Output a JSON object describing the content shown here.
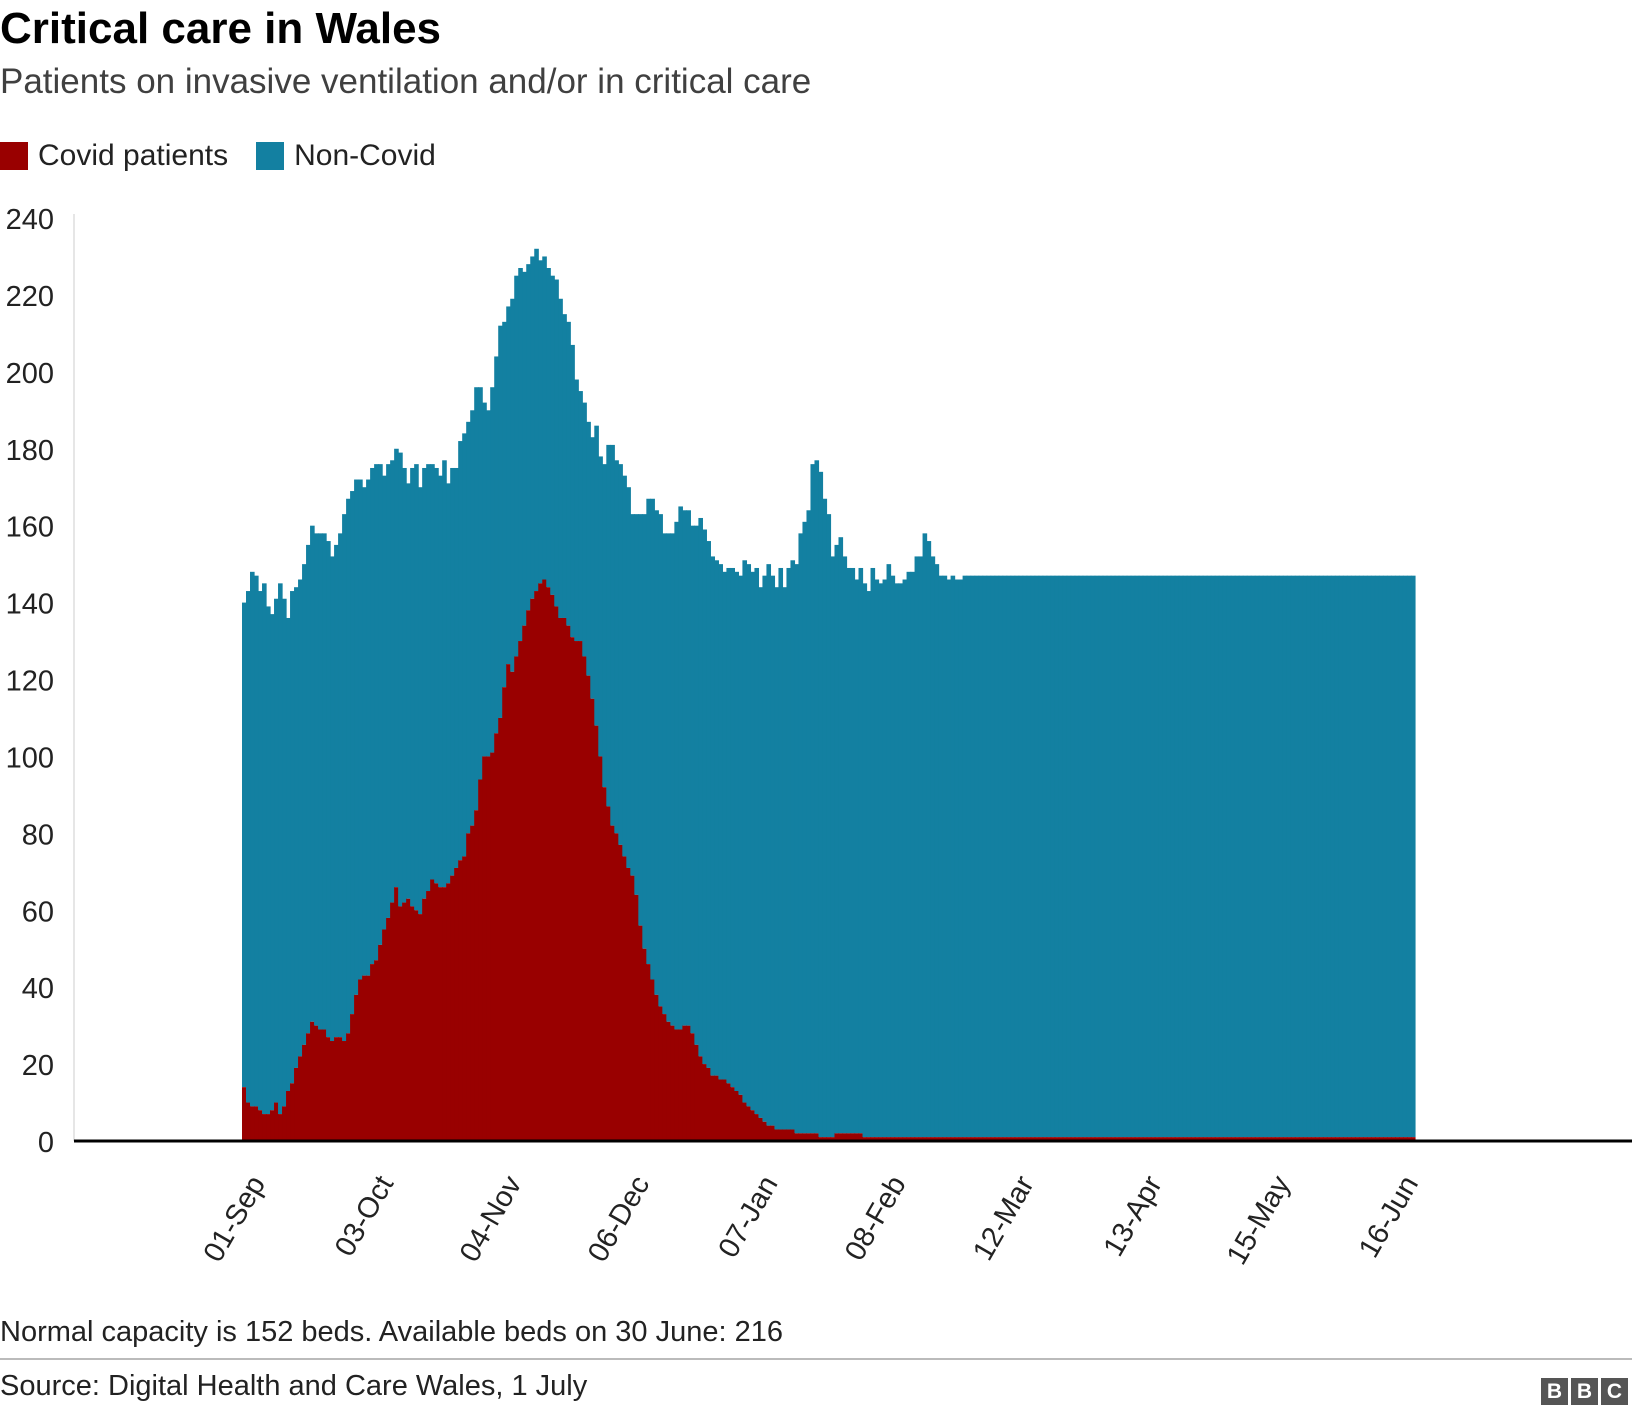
{
  "header": {
    "title": "Critical care in Wales",
    "subtitle": "Patients on invasive ventilation and/or in critical care"
  },
  "footer": {
    "note": "Normal capacity is 152 beds. Available beds on 30 June: 216",
    "source": "Source: Digital Health and Care Wales, 1 July",
    "logo": [
      "B",
      "B",
      "C"
    ]
  },
  "colors": {
    "covid": "#990000",
    "non_covid": "#1380A1",
    "axis": "#000000",
    "text": "#222222"
  },
  "chart_data": {
    "type": "bar",
    "stacked": true,
    "title": "Critical care in Wales",
    "subtitle": "Patients on invasive ventilation and/or in critical care",
    "xlabel": "",
    "ylabel": "",
    "ylim": [
      0,
      240
    ],
    "yticks": [
      0,
      20,
      40,
      60,
      80,
      100,
      120,
      140,
      160,
      180,
      200,
      220,
      240
    ],
    "grid": false,
    "legend_position": "top-left",
    "x_start": "2020-09-01",
    "x_end": "2021-06-30",
    "xtick_labels": [
      "01-Sep",
      "03-Oct",
      "04-Nov",
      "06-Dec",
      "07-Jan",
      "08-Feb",
      "12-Mar",
      "13-Apr",
      "15-May",
      "16-Jun"
    ],
    "xtick_dates": [
      "2020-09-01",
      "2020-10-03",
      "2020-11-04",
      "2020-12-06",
      "2021-01-07",
      "2021-02-08",
      "2021-03-12",
      "2021-04-13",
      "2021-05-15",
      "2021-06-16"
    ],
    "series": [
      {
        "name": "Covid patients",
        "key": "covid",
        "values": [
          14,
          10,
          9,
          9,
          8,
          7,
          7,
          8,
          10,
          7,
          9,
          13,
          15,
          19,
          22,
          25,
          28,
          31,
          30,
          29,
          29,
          27,
          26,
          27,
          27,
          26,
          28,
          33,
          38,
          42,
          43,
          43,
          46,
          47,
          51,
          55,
          58,
          62,
          66,
          61,
          62,
          63,
          61,
          60,
          59,
          63,
          65,
          68,
          67,
          66,
          66,
          67,
          69,
          71,
          73,
          74,
          80,
          82,
          86,
          94,
          100,
          100,
          101,
          106,
          110,
          118,
          124,
          122,
          126,
          130,
          134,
          138,
          141,
          143,
          145,
          146,
          144,
          142,
          139,
          136,
          136,
          134,
          131,
          130,
          130,
          126,
          121,
          115,
          108,
          100,
          92,
          87,
          82,
          80,
          77,
          74,
          71,
          69,
          64,
          56,
          50,
          46,
          42,
          38,
          35,
          33,
          31,
          30,
          29,
          29,
          30,
          30,
          28,
          25,
          22,
          20,
          19,
          17,
          17,
          16,
          16,
          15,
          14,
          13,
          12,
          10,
          9,
          8,
          7,
          6,
          5,
          4,
          4,
          3,
          3,
          3,
          3,
          3,
          2,
          2,
          2,
          2,
          2,
          2,
          1,
          1,
          1,
          1,
          2,
          2,
          2,
          2,
          2,
          2,
          2,
          1,
          1,
          1,
          1,
          1,
          1,
          1,
          1,
          1,
          1,
          1,
          1,
          1,
          1,
          1,
          1,
          1,
          1,
          1,
          1,
          1,
          1,
          1,
          1,
          1,
          1,
          1,
          1,
          1,
          1,
          1,
          1,
          1,
          1,
          1,
          1,
          1,
          1,
          1,
          1,
          1,
          1,
          1,
          1,
          1,
          1,
          1,
          1,
          1,
          1,
          1,
          1,
          1,
          1,
          1,
          1,
          1,
          1,
          1,
          1,
          1,
          1,
          1,
          1,
          1,
          1,
          1,
          1,
          1,
          1,
          1,
          1,
          1,
          1,
          1,
          1,
          1,
          1,
          1,
          1,
          1,
          1,
          1,
          1,
          1,
          1,
          1,
          1,
          1,
          1,
          1,
          1,
          1,
          1,
          1,
          1,
          1,
          1,
          1,
          1,
          1,
          1,
          1,
          1,
          1,
          1,
          1,
          1,
          1,
          1,
          1,
          1,
          1,
          1,
          1,
          1,
          1,
          1,
          1,
          1,
          1,
          1,
          1,
          1,
          1,
          1,
          1,
          1,
          1,
          1,
          1,
          1,
          1,
          1,
          1,
          1,
          1,
          1,
          1,
          1,
          1,
          1,
          1,
          1,
          1,
          1,
          1,
          1,
          1,
          1,
          1,
          1,
          1,
          1
        ]
      },
      {
        "name": "Non-Covid",
        "key": "non_covid",
        "total_values": [
          140,
          143,
          148,
          147,
          143,
          145,
          139,
          137,
          141,
          145,
          141,
          136,
          143,
          144,
          146,
          150,
          155,
          160,
          158,
          158,
          158,
          156,
          152,
          155,
          158,
          163,
          167,
          169,
          172,
          172,
          170,
          172,
          175,
          176,
          176,
          173,
          176,
          177,
          180,
          179,
          175,
          171,
          175,
          176,
          170,
          175,
          176,
          176,
          175,
          173,
          177,
          171,
          175,
          175,
          182,
          184,
          187,
          190,
          196,
          196,
          192,
          190,
          196,
          204,
          212,
          213,
          217,
          219,
          225,
          227,
          226,
          228,
          230,
          232,
          229,
          230,
          227,
          225,
          224,
          219,
          215,
          213,
          207,
          198,
          195,
          192,
          187,
          183,
          186,
          178,
          176,
          181,
          181,
          177,
          176,
          173,
          170,
          163,
          163,
          163,
          163,
          167,
          167,
          164,
          163,
          158,
          158,
          158,
          161,
          165,
          164,
          164,
          160,
          160,
          162,
          159,
          156,
          152,
          151,
          150,
          148,
          149,
          149,
          148,
          147,
          151,
          150,
          148,
          149,
          144,
          147,
          150,
          147,
          144,
          149,
          144,
          149,
          151,
          150,
          158,
          161,
          164,
          176,
          177,
          174,
          167,
          163,
          152,
          155,
          157,
          152,
          149,
          149,
          146,
          149,
          145,
          143,
          149,
          146,
          145,
          146,
          150,
          147,
          145,
          145,
          146,
          148,
          148,
          152,
          152,
          158,
          156,
          152,
          150,
          147,
          147,
          146,
          147,
          146,
          146,
          147,
          147,
          147,
          147,
          147,
          147,
          147,
          147,
          147,
          147,
          147,
          147,
          147,
          147,
          147,
          147,
          147,
          147,
          147,
          147,
          147,
          147,
          147,
          147,
          147,
          147,
          147,
          147,
          147,
          147,
          147,
          147,
          147,
          147,
          147,
          147,
          147,
          147,
          147,
          147,
          147,
          147,
          147,
          147,
          147,
          147,
          147,
          147,
          147,
          147,
          147,
          147,
          147,
          147,
          147,
          147,
          147,
          147,
          147,
          147,
          147,
          147,
          147,
          147,
          147,
          147,
          147,
          147,
          147,
          147,
          147,
          147,
          147,
          147,
          147,
          147,
          147,
          147,
          147,
          147,
          147,
          147,
          147,
          147,
          147,
          147,
          147,
          147,
          147,
          147,
          147,
          147,
          147,
          147,
          147,
          147,
          147,
          147,
          147,
          147,
          147,
          147,
          147,
          147,
          147,
          147,
          147,
          147,
          147,
          147,
          147,
          147,
          147
        ]
      }
    ]
  }
}
